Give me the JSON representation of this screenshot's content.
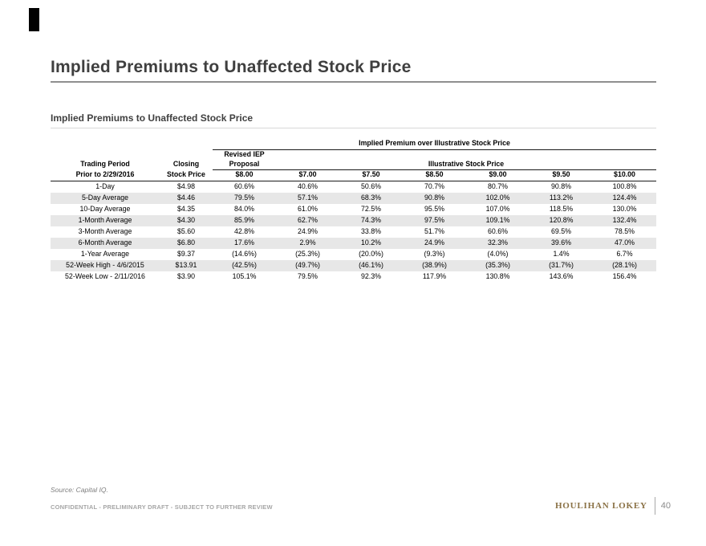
{
  "slide": {
    "title": "Implied Premiums to Unaffected Stock Price",
    "section_title": "Implied Premiums to Unaffected Stock Price",
    "source_note": "Source: Capital IQ.",
    "confidential_note": "CONFIDENTIAL - PRELIMINARY DRAFT - SUBJECT TO FURTHER REVIEW",
    "logo_text": "HOULIHAN LOKEY",
    "page_number": "40",
    "accent_color": "#8a7145"
  },
  "table": {
    "span_header": "Implied Premium over Illustrative Stock Price",
    "revised_iep_header_line1": "Revised IEP",
    "revised_iep_header_line2": "Proposal",
    "illustrative_header": "Illustrative Stock Price",
    "period_header_line1": "Trading Period",
    "period_header_line2": "Prior to 2/29/2016",
    "closing_header_line1": "Closing",
    "closing_header_line2": "Stock Price",
    "price_headers": [
      "$8.00",
      "$7.00",
      "$7.50",
      "$8.50",
      "$9.00",
      "$9.50",
      "$10.00"
    ],
    "rows": [
      {
        "period": "1-Day",
        "closing_price": "$4.98",
        "premiums": [
          "60.6%",
          "40.6%",
          "50.6%",
          "70.7%",
          "80.7%",
          "90.8%",
          "100.8%"
        ]
      },
      {
        "period": "5-Day Average",
        "closing_price": "$4.46",
        "premiums": [
          "79.5%",
          "57.1%",
          "68.3%",
          "90.8%",
          "102.0%",
          "113.2%",
          "124.4%"
        ]
      },
      {
        "period": "10-Day Average",
        "closing_price": "$4.35",
        "premiums": [
          "84.0%",
          "61.0%",
          "72.5%",
          "95.5%",
          "107.0%",
          "118.5%",
          "130.0%"
        ]
      },
      {
        "period": "1-Month Average",
        "closing_price": "$4.30",
        "premiums": [
          "85.9%",
          "62.7%",
          "74.3%",
          "97.5%",
          "109.1%",
          "120.8%",
          "132.4%"
        ]
      },
      {
        "period": "3-Month Average",
        "closing_price": "$5.60",
        "premiums": [
          "42.8%",
          "24.9%",
          "33.8%",
          "51.7%",
          "60.6%",
          "69.5%",
          "78.5%"
        ]
      },
      {
        "period": "6-Month Average",
        "closing_price": "$6.80",
        "premiums": [
          "17.6%",
          "2.9%",
          "10.2%",
          "24.9%",
          "32.3%",
          "39.6%",
          "47.0%"
        ]
      },
      {
        "period": "1-Year Average",
        "closing_price": "$9.37",
        "premiums": [
          "(14.6%)",
          "(25.3%)",
          "(20.0%)",
          "(9.3%)",
          "(4.0%)",
          "1.4%",
          "6.7%"
        ]
      },
      {
        "period": "52-Week High - 4/6/2015",
        "closing_price": "$13.91",
        "premiums": [
          "(42.5%)",
          "(49.7%)",
          "(46.1%)",
          "(38.9%)",
          "(35.3%)",
          "(31.7%)",
          "(28.1%)"
        ]
      },
      {
        "period": "52-Week Low - 2/11/2016",
        "closing_price": "$3.90",
        "premiums": [
          "105.1%",
          "79.5%",
          "92.3%",
          "117.9%",
          "130.8%",
          "143.6%",
          "156.4%"
        ]
      }
    ]
  }
}
